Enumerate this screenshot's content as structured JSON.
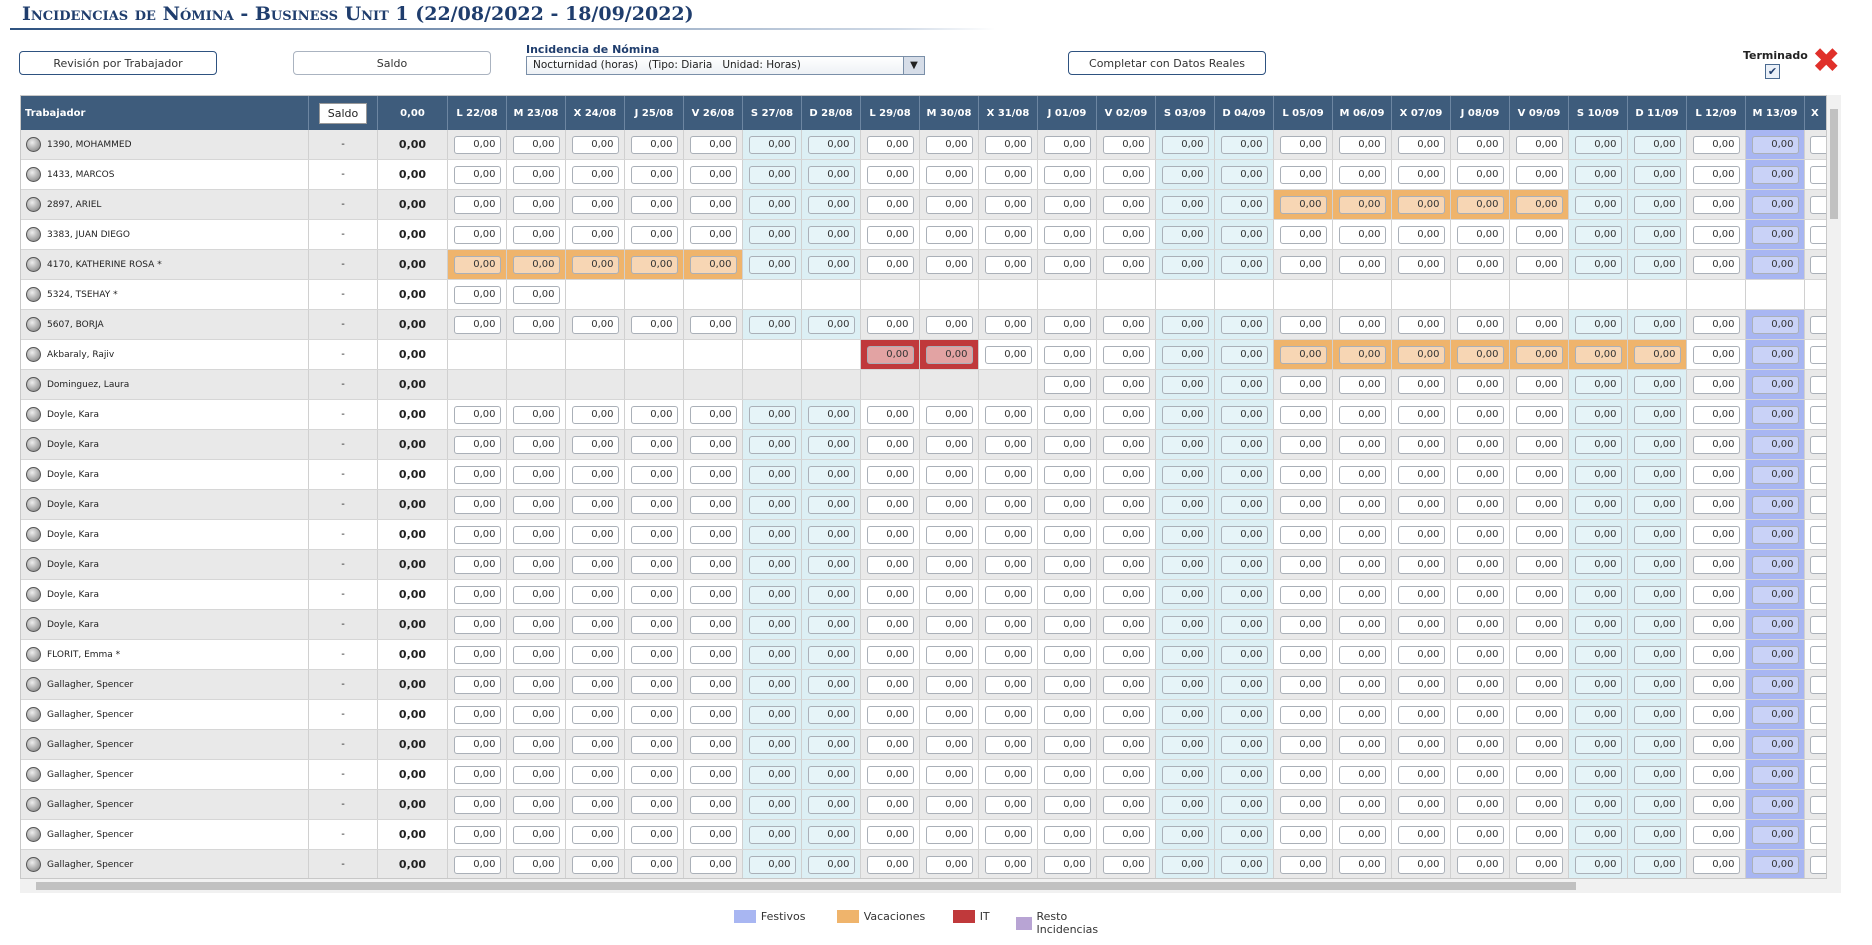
{
  "header": {
    "title": "Incidencias de Nómina - Business Unit 1 (22/08/2022 - 18/09/2022)"
  },
  "toolbar": {
    "revision": "Revisión por Trabajador",
    "saldo": "Saldo",
    "incidencia_label": "Incidencia de Nómina",
    "incidencia_value": "Nocturnidad (horas)   (Tipo: Diaria   Unidad: Horas)",
    "completar": "Completar con Datos Reales",
    "terminado": "Terminado"
  },
  "table": {
    "headers": {
      "worker": "Trabajador",
      "saldo": "Saldo",
      "total": "0,00"
    },
    "columns": [
      "L 22/08",
      "M 23/08",
      "X 24/08",
      "J 25/08",
      "V 26/08",
      "S 27/08",
      "D 28/08",
      "L 29/08",
      "M 30/08",
      "X 31/08",
      "J 01/09",
      "V 02/09",
      "S 03/09",
      "D 04/09",
      "L 05/09",
      "M 06/09",
      "X 07/09",
      "J 08/09",
      "V 09/09",
      "S 10/09",
      "D 11/09",
      "L 12/09",
      {
        "label": "M 13/09",
        "type": "Festivos"
      },
      "X"
    ],
    "rows": [
      {
        "worker": "1390, MOHAMMED",
        "saldo": "-",
        "total": "0,00",
        "cells": [
          "0,00",
          "0,00",
          "0,00",
          "0,00",
          "0,00",
          "0,00",
          "0,00",
          "0,00",
          "0,00",
          "0,00",
          "0,00",
          "0,00",
          "0,00",
          "0,00",
          "0,00",
          "0,00",
          "0,00",
          "0,00",
          "0,00",
          "0,00",
          "0,00",
          "0,00",
          "0,00"
        ]
      },
      {
        "worker": "1433, MARCOS",
        "saldo": "-",
        "total": "0,00",
        "cells": [
          "0,00",
          "0,00",
          "0,00",
          "0,00",
          "0,00",
          "0,00",
          "0,00",
          "0,00",
          "0,00",
          "0,00",
          "0,00",
          "0,00",
          "0,00",
          "0,00",
          "0,00",
          "0,00",
          "0,00",
          "0,00",
          "0,00",
          "0,00",
          "0,00",
          "0,00",
          "0,00"
        ]
      },
      {
        "worker": "2897, ARIEL",
        "saldo": "-",
        "total": "0,00",
        "cells": [
          "0,00",
          "0,00",
          "0,00",
          "0,00",
          "0,00",
          "0,00",
          "0,00",
          "0,00",
          "0,00",
          "0,00",
          "0,00",
          "0,00",
          "0,00",
          "0,00",
          {
            "value": "0,00",
            "type": "Vacaciones"
          },
          {
            "value": "0,00",
            "type": "Vacaciones"
          },
          {
            "value": "0,00",
            "type": "Vacaciones"
          },
          {
            "value": "0,00",
            "type": "Vacaciones"
          },
          {
            "value": "0,00",
            "type": "Vacaciones"
          },
          "0,00",
          "0,00",
          "0,00",
          "0,00"
        ]
      },
      {
        "worker": "3383, JUAN DIEGO",
        "saldo": "-",
        "total": "0,00",
        "cells": [
          "0,00",
          "0,00",
          "0,00",
          "0,00",
          "0,00",
          "0,00",
          "0,00",
          "0,00",
          "0,00",
          "0,00",
          "0,00",
          "0,00",
          "0,00",
          "0,00",
          "0,00",
          "0,00",
          "0,00",
          "0,00",
          "0,00",
          "0,00",
          "0,00",
          "0,00",
          "0,00"
        ]
      },
      {
        "worker": "4170, KATHERINE ROSA *",
        "saldo": "-",
        "total": "0,00",
        "cells": [
          {
            "value": "0,00",
            "type": "Vacaciones"
          },
          {
            "value": "0,00",
            "type": "Vacaciones"
          },
          {
            "value": "0,00",
            "type": "Vacaciones"
          },
          {
            "value": "0,00",
            "type": "Vacaciones"
          },
          {
            "value": "0,00",
            "type": "Vacaciones"
          },
          "0,00",
          "0,00",
          "0,00",
          "0,00",
          "0,00",
          "0,00",
          "0,00",
          "0,00",
          "0,00",
          "0,00",
          "0,00",
          "0,00",
          "0,00",
          "0,00",
          "0,00",
          "0,00",
          "0,00",
          "0,00"
        ]
      },
      {
        "worker": "5324, TSEHAY *",
        "saldo": "-",
        "total": "0,00",
        "cells": [
          "0,00",
          "0,00",
          null,
          null,
          null,
          null,
          null,
          null,
          null,
          null,
          null,
          null,
          null,
          null,
          null,
          null,
          null,
          null,
          null,
          null,
          null,
          null,
          null
        ]
      },
      {
        "worker": "5607, BORJA",
        "saldo": "-",
        "total": "0,00",
        "cells": [
          "0,00",
          "0,00",
          "0,00",
          "0,00",
          "0,00",
          "0,00",
          "0,00",
          "0,00",
          "0,00",
          "0,00",
          "0,00",
          "0,00",
          "0,00",
          "0,00",
          "0,00",
          "0,00",
          "0,00",
          "0,00",
          "0,00",
          "0,00",
          "0,00",
          "0,00",
          "0,00"
        ]
      },
      {
        "worker": "Akbaraly, Rajiv",
        "saldo": "-",
        "total": "0,00",
        "cells": [
          null,
          null,
          null,
          null,
          null,
          null,
          null,
          {
            "value": "0,00",
            "type": "IT"
          },
          {
            "value": "0,00",
            "type": "IT"
          },
          "0,00",
          "0,00",
          "0,00",
          "0,00",
          "0,00",
          {
            "value": "0,00",
            "type": "Vacaciones"
          },
          {
            "value": "0,00",
            "type": "Vacaciones"
          },
          {
            "value": "0,00",
            "type": "Vacaciones"
          },
          {
            "value": "0,00",
            "type": "Vacaciones"
          },
          {
            "value": "0,00",
            "type": "Vacaciones"
          },
          {
            "value": "0,00",
            "type": "Vacaciones"
          },
          {
            "value": "0,00",
            "type": "Vacaciones"
          },
          "0,00",
          "0,00"
        ]
      },
      {
        "worker": "Dominguez, Laura",
        "saldo": "-",
        "total": "0,00",
        "cells": [
          null,
          null,
          null,
          null,
          null,
          null,
          null,
          null,
          null,
          null,
          "0,00",
          "0,00",
          "0,00",
          "0,00",
          "0,00",
          "0,00",
          "0,00",
          "0,00",
          "0,00",
          "0,00",
          "0,00",
          "0,00",
          "0,00"
        ]
      },
      {
        "worker": "Doyle, Kara",
        "saldo": "-",
        "total": "0,00",
        "cells": [
          "0,00",
          "0,00",
          "0,00",
          "0,00",
          "0,00",
          "0,00",
          "0,00",
          "0,00",
          "0,00",
          "0,00",
          "0,00",
          "0,00",
          "0,00",
          "0,00",
          "0,00",
          "0,00",
          "0,00",
          "0,00",
          "0,00",
          "0,00",
          "0,00",
          "0,00",
          "0,00"
        ]
      },
      {
        "worker": "Doyle, Kara",
        "saldo": "-",
        "total": "0,00",
        "cells": [
          "0,00",
          "0,00",
          "0,00",
          "0,00",
          "0,00",
          "0,00",
          "0,00",
          "0,00",
          "0,00",
          "0,00",
          "0,00",
          "0,00",
          "0,00",
          "0,00",
          "0,00",
          "0,00",
          "0,00",
          "0,00",
          "0,00",
          "0,00",
          "0,00",
          "0,00",
          "0,00"
        ]
      },
      {
        "worker": "Doyle, Kara",
        "saldo": "-",
        "total": "0,00",
        "cells": [
          "0,00",
          "0,00",
          "0,00",
          "0,00",
          "0,00",
          "0,00",
          "0,00",
          "0,00",
          "0,00",
          "0,00",
          "0,00",
          "0,00",
          "0,00",
          "0,00",
          "0,00",
          "0,00",
          "0,00",
          "0,00",
          "0,00",
          "0,00",
          "0,00",
          "0,00",
          "0,00"
        ]
      },
      {
        "worker": "Doyle, Kara",
        "saldo": "-",
        "total": "0,00",
        "cells": [
          "0,00",
          "0,00",
          "0,00",
          "0,00",
          "0,00",
          "0,00",
          "0,00",
          "0,00",
          "0,00",
          "0,00",
          "0,00",
          "0,00",
          "0,00",
          "0,00",
          "0,00",
          "0,00",
          "0,00",
          "0,00",
          "0,00",
          "0,00",
          "0,00",
          "0,00",
          "0,00"
        ]
      },
      {
        "worker": "Doyle, Kara",
        "saldo": "-",
        "total": "0,00",
        "cells": [
          "0,00",
          "0,00",
          "0,00",
          "0,00",
          "0,00",
          "0,00",
          "0,00",
          "0,00",
          "0,00",
          "0,00",
          "0,00",
          "0,00",
          "0,00",
          "0,00",
          "0,00",
          "0,00",
          "0,00",
          "0,00",
          "0,00",
          "0,00",
          "0,00",
          "0,00",
          "0,00"
        ]
      },
      {
        "worker": "Doyle, Kara",
        "saldo": "-",
        "total": "0,00",
        "cells": [
          "0,00",
          "0,00",
          "0,00",
          "0,00",
          "0,00",
          "0,00",
          "0,00",
          "0,00",
          "0,00",
          "0,00",
          "0,00",
          "0,00",
          "0,00",
          "0,00",
          "0,00",
          "0,00",
          "0,00",
          "0,00",
          "0,00",
          "0,00",
          "0,00",
          "0,00",
          "0,00"
        ]
      },
      {
        "worker": "Doyle, Kara",
        "saldo": "-",
        "total": "0,00",
        "cells": [
          "0,00",
          "0,00",
          "0,00",
          "0,00",
          "0,00",
          "0,00",
          "0,00",
          "0,00",
          "0,00",
          "0,00",
          "0,00",
          "0,00",
          "0,00",
          "0,00",
          "0,00",
          "0,00",
          "0,00",
          "0,00",
          "0,00",
          "0,00",
          "0,00",
          "0,00",
          "0,00"
        ]
      },
      {
        "worker": "Doyle, Kara",
        "saldo": "-",
        "total": "0,00",
        "cells": [
          "0,00",
          "0,00",
          "0,00",
          "0,00",
          "0,00",
          "0,00",
          "0,00",
          "0,00",
          "0,00",
          "0,00",
          "0,00",
          "0,00",
          "0,00",
          "0,00",
          "0,00",
          "0,00",
          "0,00",
          "0,00",
          "0,00",
          "0,00",
          "0,00",
          "0,00",
          "0,00"
        ]
      },
      {
        "worker": "FLORIT, Emma *",
        "saldo": "-",
        "total": "0,00",
        "cells": [
          "0,00",
          "0,00",
          "0,00",
          "0,00",
          "0,00",
          "0,00",
          "0,00",
          "0,00",
          "0,00",
          "0,00",
          "0,00",
          "0,00",
          "0,00",
          "0,00",
          "0,00",
          "0,00",
          "0,00",
          "0,00",
          "0,00",
          "0,00",
          "0,00",
          "0,00",
          "0,00"
        ]
      },
      {
        "worker": "Gallagher, Spencer",
        "saldo": "-",
        "total": "0,00",
        "cells": [
          "0,00",
          "0,00",
          "0,00",
          "0,00",
          "0,00",
          "0,00",
          "0,00",
          "0,00",
          "0,00",
          "0,00",
          "0,00",
          "0,00",
          "0,00",
          "0,00",
          "0,00",
          "0,00",
          "0,00",
          "0,00",
          "0,00",
          "0,00",
          "0,00",
          "0,00",
          "0,00"
        ]
      },
      {
        "worker": "Gallagher, Spencer",
        "saldo": "-",
        "total": "0,00",
        "cells": [
          "0,00",
          "0,00",
          "0,00",
          "0,00",
          "0,00",
          "0,00",
          "0,00",
          "0,00",
          "0,00",
          "0,00",
          "0,00",
          "0,00",
          "0,00",
          "0,00",
          "0,00",
          "0,00",
          "0,00",
          "0,00",
          "0,00",
          "0,00",
          "0,00",
          "0,00",
          "0,00"
        ]
      },
      {
        "worker": "Gallagher, Spencer",
        "saldo": "-",
        "total": "0,00",
        "cells": [
          "0,00",
          "0,00",
          "0,00",
          "0,00",
          "0,00",
          "0,00",
          "0,00",
          "0,00",
          "0,00",
          "0,00",
          "0,00",
          "0,00",
          "0,00",
          "0,00",
          "0,00",
          "0,00",
          "0,00",
          "0,00",
          "0,00",
          "0,00",
          "0,00",
          "0,00",
          "0,00"
        ]
      },
      {
        "worker": "Gallagher, Spencer",
        "saldo": "-",
        "total": "0,00",
        "cells": [
          "0,00",
          "0,00",
          "0,00",
          "0,00",
          "0,00",
          "0,00",
          "0,00",
          "0,00",
          "0,00",
          "0,00",
          "0,00",
          "0,00",
          "0,00",
          "0,00",
          "0,00",
          "0,00",
          "0,00",
          "0,00",
          "0,00",
          "0,00",
          "0,00",
          "0,00",
          "0,00"
        ]
      },
      {
        "worker": "Gallagher, Spencer",
        "saldo": "-",
        "total": "0,00",
        "cells": [
          "0,00",
          "0,00",
          "0,00",
          "0,00",
          "0,00",
          "0,00",
          "0,00",
          "0,00",
          "0,00",
          "0,00",
          "0,00",
          "0,00",
          "0,00",
          "0,00",
          "0,00",
          "0,00",
          "0,00",
          "0,00",
          "0,00",
          "0,00",
          "0,00",
          "0,00",
          "0,00"
        ]
      },
      {
        "worker": "Gallagher, Spencer",
        "saldo": "-",
        "total": "0,00",
        "cells": [
          "0,00",
          "0,00",
          "0,00",
          "0,00",
          "0,00",
          "0,00",
          "0,00",
          "0,00",
          "0,00",
          "0,00",
          "0,00",
          "0,00",
          "0,00",
          "0,00",
          "0,00",
          "0,00",
          "0,00",
          "0,00",
          "0,00",
          "0,00",
          "0,00",
          "0,00",
          "0,00"
        ]
      },
      {
        "worker": "Gallagher, Spencer",
        "saldo": "-",
        "total": "0,00",
        "cells": [
          "0,00",
          "0,00",
          "0,00",
          "0,00",
          "0,00",
          "0,00",
          "0,00",
          "0,00",
          "0,00",
          "0,00",
          "0,00",
          "0,00",
          "0,00",
          "0,00",
          "0,00",
          "0,00",
          "0,00",
          "0,00",
          "0,00",
          "0,00",
          "0,00",
          "0,00",
          "0,00"
        ]
      }
    ]
  },
  "legend": [
    {
      "label": "Festivos",
      "color": "#a8b6f2"
    },
    {
      "label": "Vacaciones",
      "color": "#efb46c"
    },
    {
      "label": "IT",
      "color": "#c0393b"
    },
    {
      "label": "Resto Incidencias",
      "color": "#b8a4d4"
    }
  ]
}
